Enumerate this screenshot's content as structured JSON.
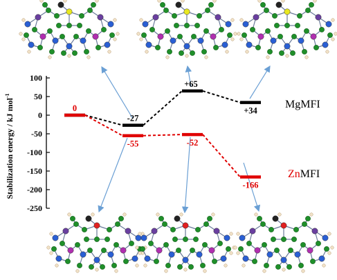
{
  "chart_data": {
    "type": "line",
    "ylabel": "Stabilization energy / kJ mol",
    "ylabel_superscript": "-1",
    "ylim": [
      -250,
      100
    ],
    "yticks": [
      100,
      50,
      0,
      -50,
      -100,
      -150,
      -200,
      -250
    ],
    "series": [
      {
        "name_prefix": "Mg",
        "name_suffix": "MFI",
        "color": "#000000",
        "prefix_color": "#000000",
        "points": [
          {
            "step": 0,
            "y": 0,
            "label": ""
          },
          {
            "step": 1,
            "y": -27,
            "label": "-27"
          },
          {
            "step": 2,
            "y": 65,
            "label": "+65"
          },
          {
            "step": 3,
            "y": 34,
            "label": "+34"
          }
        ]
      },
      {
        "name_prefix": "Zn",
        "name_suffix": "MFI",
        "color": "#e00000",
        "prefix_color": "#e00000",
        "points": [
          {
            "step": 0,
            "y": 0,
            "label": "0"
          },
          {
            "step": 1,
            "y": -55,
            "label": "-55"
          },
          {
            "step": 2,
            "y": -52,
            "label": "-52"
          },
          {
            "step": 3,
            "y": -166,
            "label": "-166"
          }
        ]
      }
    ],
    "structure_images": {
      "top": [
        "mg-structure-1",
        "mg-structure-2",
        "mg-structure-3"
      ],
      "bottom": [
        "zn-structure-1",
        "zn-structure-2",
        "zn-structure-3"
      ]
    },
    "grid": false,
    "arrow_color": "#6a9fd4"
  }
}
